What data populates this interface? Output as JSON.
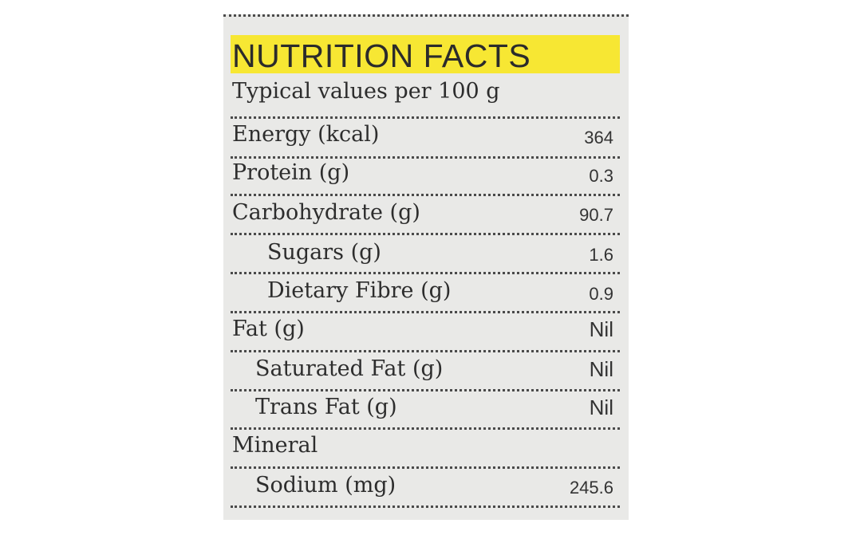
{
  "title": "NUTRITION FACTS",
  "subtitle": "Typical values per 100 g",
  "rows": [
    {
      "label": "Energy (kcal)",
      "value": "364"
    },
    {
      "label": "Protein (g)",
      "value": "0.3"
    },
    {
      "label": "Carbohydrate (g)",
      "value": "90.7"
    },
    {
      "label": "Sugars (g)",
      "value": "1.6"
    },
    {
      "label": "Dietary Fibre (g)",
      "value": "0.9"
    },
    {
      "label": "Fat (g)",
      "value": "Nil"
    },
    {
      "label": "Saturated Fat (g)",
      "value": "Nil"
    },
    {
      "label": "Trans Fat (g)",
      "value": "Nil"
    },
    {
      "label": "Mineral",
      "value": ""
    },
    {
      "label": "Sodium (mg)",
      "value": "245.6"
    }
  ],
  "colors": {
    "title_highlight": "#f7e733",
    "panel_background": "#e9e9e7",
    "text": "#2d2d2d"
  }
}
